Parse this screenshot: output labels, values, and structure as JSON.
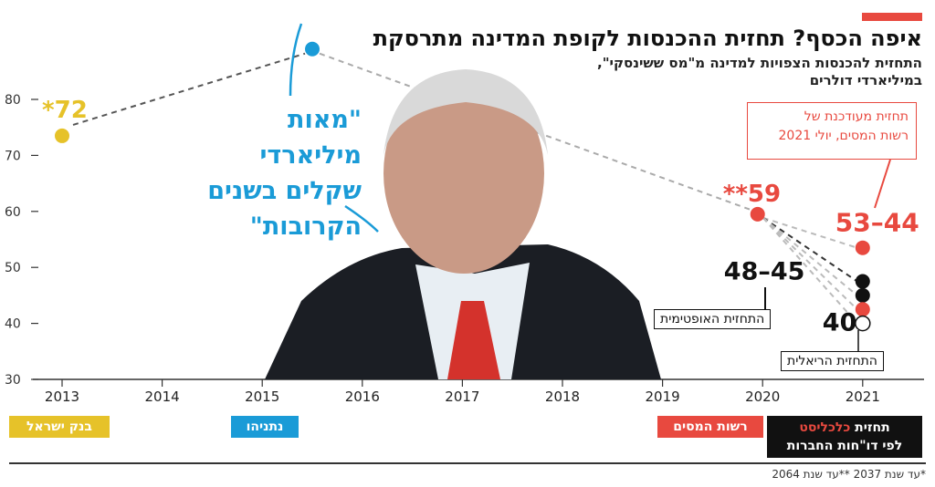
{
  "header": {
    "title": "איפה הכסף? תחזית ההכנסות לקופת המדינה מתרסקת",
    "subtitle_line1": "התחזית להכנסות הצפויות למדינה מ\"מס ששינסקי\",",
    "subtitle_line2": "במיליארדי דולרים",
    "accent_color": "#e8493f"
  },
  "quote": {
    "line1": "\"מאות מיליארדי",
    "line2": "שקלים בשנים",
    "line3": "הקרובות\""
  },
  "callout": {
    "line1": "תחזית מעודכנת של",
    "line2": "רשות המסים, יולי 2021"
  },
  "labels": {
    "optimistic": "התחזית האופטימית",
    "realistic": "התחזית הריאלית"
  },
  "sources": {
    "bank": "בנק ישראל",
    "netanyahu": "נתניהו",
    "tax_authority": "רשות המסים",
    "calcalist_line1a": "תחזית",
    "calcalist_line1b": "כלכליסט",
    "calcalist_line2": "לפי דו\"חות החברות"
  },
  "footnote": "*עד שנת 2037 **עד שנת 2064",
  "chart_data": {
    "type": "scatter",
    "xlabel": "",
    "ylabel": "",
    "ylim": [
      30,
      85
    ],
    "yticks": [
      30,
      40,
      50,
      60,
      70,
      80
    ],
    "xticks": [
      "2013",
      "2014",
      "2015",
      "2016",
      "2017",
      "2018",
      "2019",
      "2020",
      "2021"
    ],
    "grid": false,
    "points": [
      {
        "x": 2013,
        "y": 73.5,
        "label": "*72",
        "color": "#e6c229",
        "source": "bank"
      },
      {
        "x": 2015.5,
        "y": 89,
        "label": "",
        "color": "#1a9bd7",
        "source": "netanyahu"
      },
      {
        "x": 2019.95,
        "y": 59.5,
        "label": "**59",
        "color": "#e8493f",
        "source": "tax_authority"
      },
      {
        "x": 2021,
        "y": 53.5,
        "label": "53–44",
        "color": "#e8493f",
        "source": "tax_authority_2021"
      },
      {
        "x": 2021,
        "y": 47.5,
        "label": "48–45",
        "color": "#111111",
        "source": "calcalist_optimistic"
      },
      {
        "x": 2021,
        "y": 45,
        "label": "",
        "color": "#111111",
        "source": "calcalist"
      },
      {
        "x": 2021,
        "y": 42.5,
        "label": "",
        "color": "#e8493f",
        "source": "calcalist"
      },
      {
        "x": 2021,
        "y": 40,
        "label": "40",
        "color": "#ffffff",
        "source": "calcalist_realistic"
      }
    ],
    "colors": {
      "bank": "#e6c229",
      "netanyahu": "#1a9bd7",
      "tax": "#e8493f",
      "calcalist": "#111111"
    }
  }
}
